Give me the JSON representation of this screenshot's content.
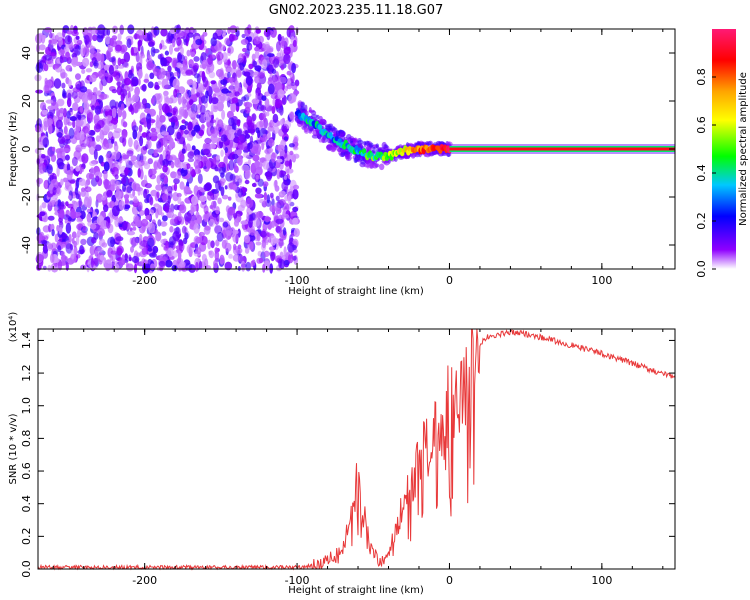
{
  "title": "GN02.2023.235.11.18.G07",
  "chart_data": [
    {
      "type": "heatmap",
      "xlabel": "Height of straight line (km)",
      "ylabel": "Frequency (Hz)",
      "xlim": [
        -270,
        148
      ],
      "ylim": [
        -50,
        50
      ],
      "x_ticks": [
        -200,
        -100,
        0,
        100
      ],
      "y_ticks": [
        -40,
        -20,
        0,
        20,
        40
      ],
      "colorbar": {
        "label": "Normalized spectral amplitude",
        "range": [
          0.0,
          1.0
        ],
        "ticks": [
          "0.0",
          "0.2",
          "0.4",
          "0.6",
          "0.8"
        ],
        "colormap": [
          "#ffffff",
          "#8f00ff",
          "#0000ff",
          "#00c8ff",
          "#00ff00",
          "#ffff00",
          "#ffa500",
          "#ff0000",
          "#ff1a75"
        ]
      },
      "noise_region": {
        "x_range": [
          -270,
          -100
        ],
        "freq_range": [
          -50,
          50
        ],
        "amplitude": "0.0-0.2"
      },
      "signal_track": [
        {
          "x": -100,
          "freq": 15
        },
        {
          "x": -90,
          "freq": 11
        },
        {
          "x": -80,
          "freq": 6
        },
        {
          "x": -70,
          "freq": 2
        },
        {
          "x": -60,
          "freq": -1
        },
        {
          "x": -50,
          "freq": -3
        },
        {
          "x": -40,
          "freq": -3
        },
        {
          "x": -30,
          "freq": -1
        },
        {
          "x": -20,
          "freq": 0
        },
        {
          "x": -10,
          "freq": 0
        },
        {
          "x": 0,
          "freq": 0
        },
        {
          "x": 50,
          "freq": 0
        },
        {
          "x": 100,
          "freq": 0
        },
        {
          "x": 148,
          "freq": 0
        }
      ],
      "track_amplitude": [
        {
          "x": -100,
          "value": 0.3
        },
        {
          "x": -70,
          "value": 0.35
        },
        {
          "x": -40,
          "value": 0.5
        },
        {
          "x": -20,
          "value": 0.75
        },
        {
          "x": 0,
          "value": 0.95
        },
        {
          "x": 148,
          "value": 0.95
        }
      ]
    },
    {
      "type": "line",
      "xlabel": "Height of straight line (km)",
      "ylabel": "SNR (10 * v/v)",
      "scale_label": "(x10⁴)",
      "xlim": [
        -270,
        148
      ],
      "ylim": [
        0,
        1.47
      ],
      "x_ticks": [
        -200,
        -100,
        0,
        100
      ],
      "y_ticks": [
        "0.0",
        "0.2",
        "0.4",
        "0.6",
        "0.8",
        "1.0",
        "1.2",
        "1.4"
      ],
      "color": "#e8393a",
      "series": [
        {
          "x": [
            -270,
            -200,
            -150,
            -100,
            -90,
            -80,
            -70,
            -65,
            -60,
            -55,
            -50,
            -45,
            -40,
            -35,
            -30,
            -25,
            -20,
            -15,
            -10,
            -5,
            0,
            5,
            10,
            15,
            20,
            25,
            30,
            40,
            50,
            60,
            80,
            100,
            120,
            148
          ],
          "values": [
            0.01,
            0.01,
            0.01,
            0.01,
            0.02,
            0.05,
            0.12,
            0.35,
            0.55,
            0.28,
            0.1,
            0.04,
            0.1,
            0.25,
            0.4,
            0.5,
            0.65,
            0.8,
            0.9,
            0.85,
            1.05,
            1.1,
            1.2,
            1.3,
            1.38,
            1.42,
            1.43,
            1.45,
            1.44,
            1.42,
            1.37,
            1.32,
            1.26,
            1.17
          ]
        }
      ]
    }
  ]
}
